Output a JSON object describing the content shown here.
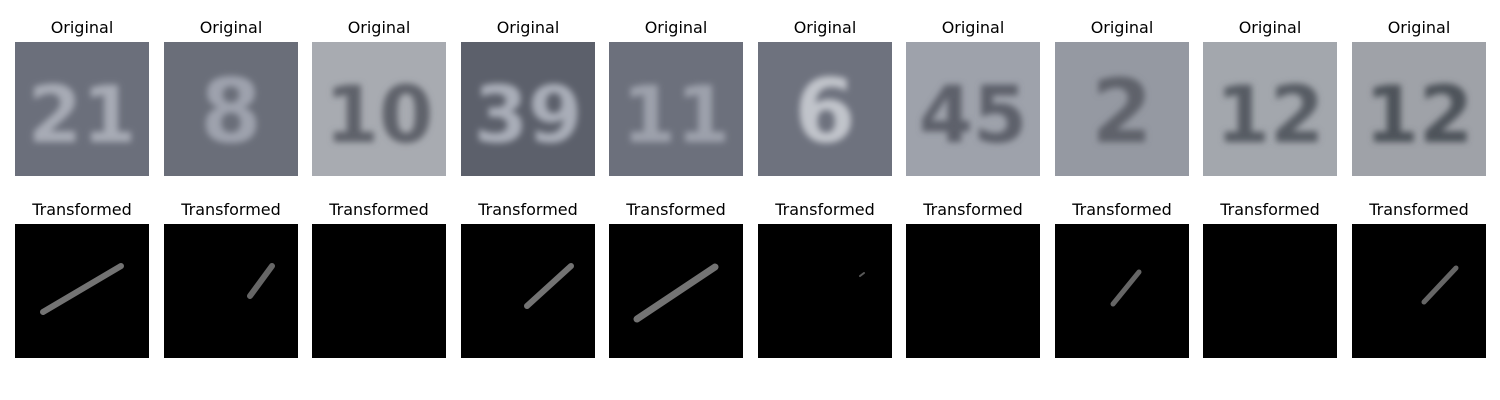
{
  "rows": [
    {
      "id": "original",
      "panels": [
        {
          "title": "Original",
          "digits": "21",
          "bg": "#6b6f7b",
          "fg": "#a7abb5"
        },
        {
          "title": "Original",
          "digits": "8",
          "bg": "#6a6e79",
          "fg": "#9ea2ad"
        },
        {
          "title": "Original",
          "digits": "10",
          "bg": "#a8abb1",
          "fg": "#5e626a"
        },
        {
          "title": "Original",
          "digits": "39",
          "bg": "#5c606b",
          "fg": "#a9adb8"
        },
        {
          "title": "Original",
          "digits": "11",
          "bg": "#6c707c",
          "fg": "#9da1ac"
        },
        {
          "title": "Original",
          "digits": "6",
          "bg": "#6e727e",
          "fg": "#c1c4cb"
        },
        {
          "title": "Original",
          "digits": "45",
          "bg": "#9ea2ab",
          "fg": "#5d616b"
        },
        {
          "title": "Original",
          "digits": "2",
          "bg": "#9599a2",
          "fg": "#5e626b"
        },
        {
          "title": "Original",
          "digits": "12",
          "bg": "#a3a7ad",
          "fg": "#575b63"
        },
        {
          "title": "Original",
          "digits": "12",
          "bg": "#9fa2a8",
          "fg": "#4e525a"
        }
      ]
    },
    {
      "id": "transformed",
      "panels": [
        {
          "title": "Transformed",
          "stroke": [
            [
              28,
              88
            ],
            [
              106,
              42
            ]
          ],
          "width": 6,
          "opacity": 0.45
        },
        {
          "title": "Transformed",
          "stroke": [
            [
              86,
              72
            ],
            [
              108,
              42
            ]
          ],
          "width": 6,
          "opacity": 0.4
        },
        {
          "title": "Transformed",
          "stroke": null,
          "width": 0,
          "opacity": 0
        },
        {
          "title": "Transformed",
          "stroke": [
            [
              66,
              82
            ],
            [
              110,
              42
            ]
          ],
          "width": 6,
          "opacity": 0.45
        },
        {
          "title": "Transformed",
          "stroke": [
            [
              28,
              95
            ],
            [
              106,
              43
            ]
          ],
          "width": 7,
          "opacity": 0.45
        },
        {
          "title": "Transformed",
          "stroke": [
            [
              102,
              52
            ],
            [
              106,
              49
            ]
          ],
          "width": 2,
          "opacity": 0.35
        },
        {
          "title": "Transformed",
          "stroke": null,
          "width": 0,
          "opacity": 0
        },
        {
          "title": "Transformed",
          "stroke": [
            [
              58,
              80
            ],
            [
              84,
              48
            ]
          ],
          "width": 5,
          "opacity": 0.4
        },
        {
          "title": "Transformed",
          "stroke": null,
          "width": 0,
          "opacity": 0
        },
        {
          "title": "Transformed",
          "stroke": [
            [
              72,
              78
            ],
            [
              104,
              44
            ]
          ],
          "width": 5,
          "opacity": 0.4
        }
      ]
    }
  ]
}
